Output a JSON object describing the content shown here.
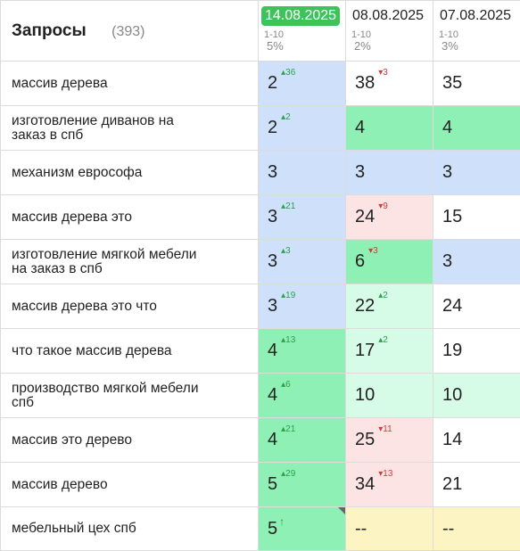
{
  "header": {
    "title": "Запросы",
    "count": "(393)",
    "columns": [
      {
        "date": "14.08.2025",
        "range": "1-10",
        "pct": "5%"
      },
      {
        "date": "08.08.2025",
        "range": "1-10",
        "pct": "2%"
      },
      {
        "date": "07.08.2025",
        "range": "1-10",
        "pct": "3%"
      }
    ]
  },
  "colors": {
    "blue": "#cfe0fb",
    "green": "#8ef0b4",
    "light_green": "#d6fbe6",
    "pink": "#fde4e4",
    "yellow": "#fdf4c4",
    "white": "#ffffff",
    "active_date": "#3ec25a"
  },
  "rows": [
    {
      "query": "массив дерева",
      "cells": [
        {
          "val": "2",
          "chg": "36",
          "dir": "up",
          "bg": "blue"
        },
        {
          "val": "38",
          "chg": "3",
          "dir": "down",
          "bg": "white"
        },
        {
          "val": "35",
          "chg": "",
          "dir": "",
          "bg": "white"
        }
      ]
    },
    {
      "query": "изготовление диванов на заказ в спб",
      "cells": [
        {
          "val": "2",
          "chg": "2",
          "dir": "up",
          "bg": "blue"
        },
        {
          "val": "4",
          "chg": "",
          "dir": "",
          "bg": "green"
        },
        {
          "val": "4",
          "chg": "",
          "dir": "",
          "bg": "green"
        }
      ]
    },
    {
      "query": "механизм еврософа",
      "cells": [
        {
          "val": "3",
          "chg": "",
          "dir": "",
          "bg": "blue"
        },
        {
          "val": "3",
          "chg": "",
          "dir": "",
          "bg": "blue"
        },
        {
          "val": "3",
          "chg": "",
          "dir": "",
          "bg": "blue"
        }
      ]
    },
    {
      "query": "массив дерева это",
      "cells": [
        {
          "val": "3",
          "chg": "21",
          "dir": "up",
          "bg": "blue"
        },
        {
          "val": "24",
          "chg": "9",
          "dir": "down",
          "bg": "pink"
        },
        {
          "val": "15",
          "chg": "",
          "dir": "",
          "bg": "white"
        }
      ]
    },
    {
      "query": "изготовление мягкой мебели на заказ в спб",
      "cells": [
        {
          "val": "3",
          "chg": "3",
          "dir": "up",
          "bg": "blue"
        },
        {
          "val": "6",
          "chg": "3",
          "dir": "down",
          "bg": "green"
        },
        {
          "val": "3",
          "chg": "",
          "dir": "",
          "bg": "blue"
        }
      ]
    },
    {
      "query": "массив дерева это что",
      "cells": [
        {
          "val": "3",
          "chg": "19",
          "dir": "up",
          "bg": "blue"
        },
        {
          "val": "22",
          "chg": "2",
          "dir": "up",
          "bg": "light_green"
        },
        {
          "val": "24",
          "chg": "",
          "dir": "",
          "bg": "white"
        }
      ]
    },
    {
      "query": "что такое массив дерева",
      "cells": [
        {
          "val": "4",
          "chg": "13",
          "dir": "up",
          "bg": "green"
        },
        {
          "val": "17",
          "chg": "2",
          "dir": "up",
          "bg": "light_green"
        },
        {
          "val": "19",
          "chg": "",
          "dir": "",
          "bg": "white"
        }
      ]
    },
    {
      "query": "производство мягкой мебели спб",
      "cells": [
        {
          "val": "4",
          "chg": "6",
          "dir": "up",
          "bg": "green"
        },
        {
          "val": "10",
          "chg": "",
          "dir": "",
          "bg": "light_green"
        },
        {
          "val": "10",
          "chg": "",
          "dir": "",
          "bg": "light_green"
        }
      ]
    },
    {
      "query": "массив это дерево",
      "cells": [
        {
          "val": "4",
          "chg": "21",
          "dir": "up",
          "bg": "green"
        },
        {
          "val": "25",
          "chg": "11",
          "dir": "down",
          "bg": "pink"
        },
        {
          "val": "14",
          "chg": "",
          "dir": "",
          "bg": "white"
        }
      ]
    },
    {
      "query": "массив дерево",
      "cells": [
        {
          "val": "5",
          "chg": "29",
          "dir": "up",
          "bg": "green"
        },
        {
          "val": "34",
          "chg": "13",
          "dir": "down",
          "bg": "pink"
        },
        {
          "val": "21",
          "chg": "",
          "dir": "",
          "bg": "white"
        }
      ]
    },
    {
      "query": "мебельный цех спб",
      "cells": [
        {
          "val": "5",
          "chg": "",
          "dir": "new",
          "bg": "green",
          "corner": true
        },
        {
          "val": "--",
          "chg": "",
          "dir": "",
          "bg": "yellow"
        },
        {
          "val": "--",
          "chg": "",
          "dir": "",
          "bg": "yellow"
        }
      ]
    }
  ]
}
